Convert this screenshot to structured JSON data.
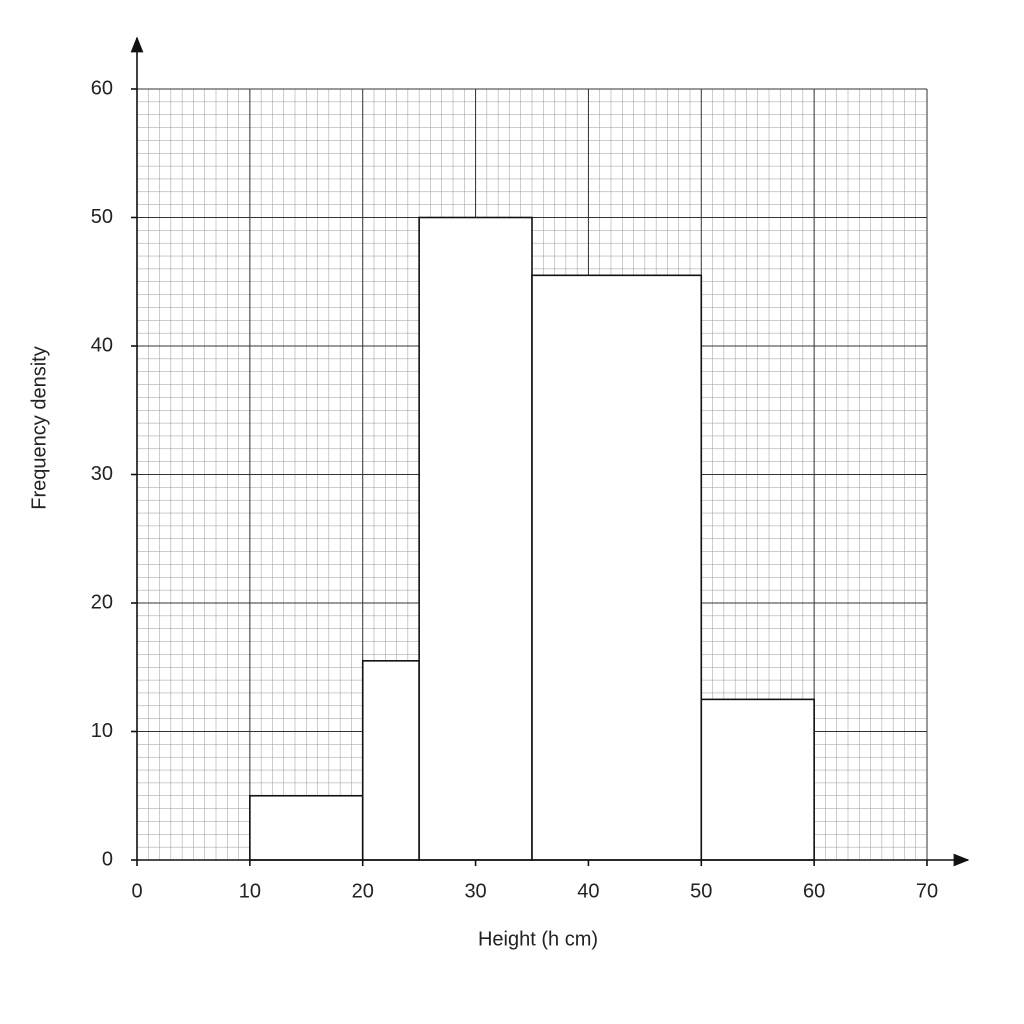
{
  "chart_data": {
    "type": "histogram",
    "x_label": "Height (h cm)",
    "y_label": "Frequency density",
    "bins": [
      10,
      20,
      25,
      35,
      50,
      60
    ],
    "counts": [
      5,
      15.5,
      50,
      45.5,
      12.5
    ],
    "color": "#ffffff",
    "xlim": [
      0,
      70
    ],
    "xticks": [
      0,
      10,
      20,
      30,
      40,
      50,
      60,
      70
    ],
    "ylim": [
      0,
      60
    ],
    "yticks": [
      0,
      10,
      20,
      30,
      40,
      50,
      60
    ],
    "grid": true,
    "minor_grid": true
  }
}
